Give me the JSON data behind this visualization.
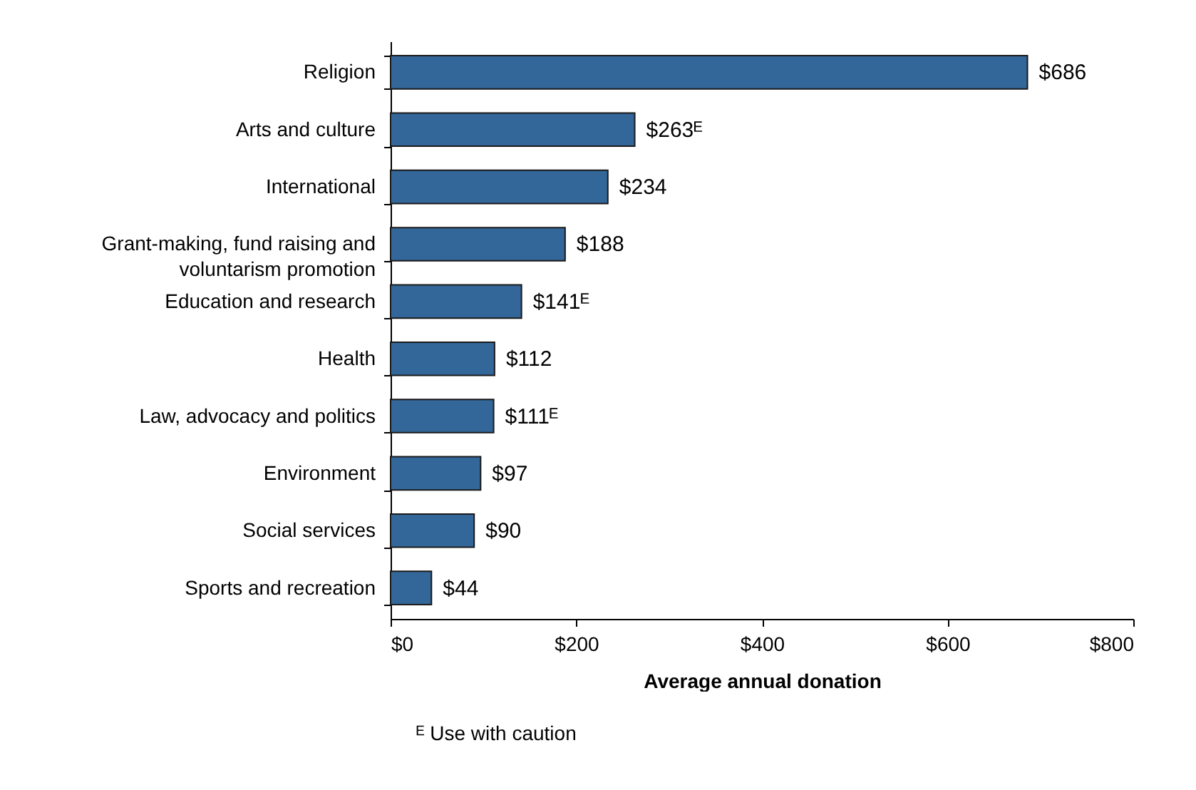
{
  "chart_data": {
    "type": "bar",
    "orientation": "horizontal",
    "xlabel": "Average annual donation",
    "categories": [
      "Religion",
      "Arts and culture",
      "International",
      "Grant-making, fund raising and voluntarism promotion",
      "Education and research",
      "Health",
      "Law, advocacy and politics",
      "Environment",
      "Social services",
      "Sports and recreation"
    ],
    "values": [
      686,
      263,
      234,
      188,
      141,
      112,
      111,
      97,
      90,
      44
    ],
    "value_labels": [
      "$686",
      "$263ᴱ",
      "$234",
      "$188",
      "$141ᴱ",
      "$112",
      "$111ᴱ",
      "$97",
      "$90",
      "$44"
    ],
    "color": "#336699",
    "xlim": [
      0,
      800
    ],
    "xticks": [
      {
        "value": 0,
        "label": "$0"
      },
      {
        "value": 200,
        "label": "$200"
      },
      {
        "value": 400,
        "label": "$400"
      },
      {
        "value": 600,
        "label": "$600"
      },
      {
        "value": 800,
        "label": "$800"
      }
    ],
    "grid": false,
    "annotations": [
      "ᴱ Use with caution"
    ]
  }
}
